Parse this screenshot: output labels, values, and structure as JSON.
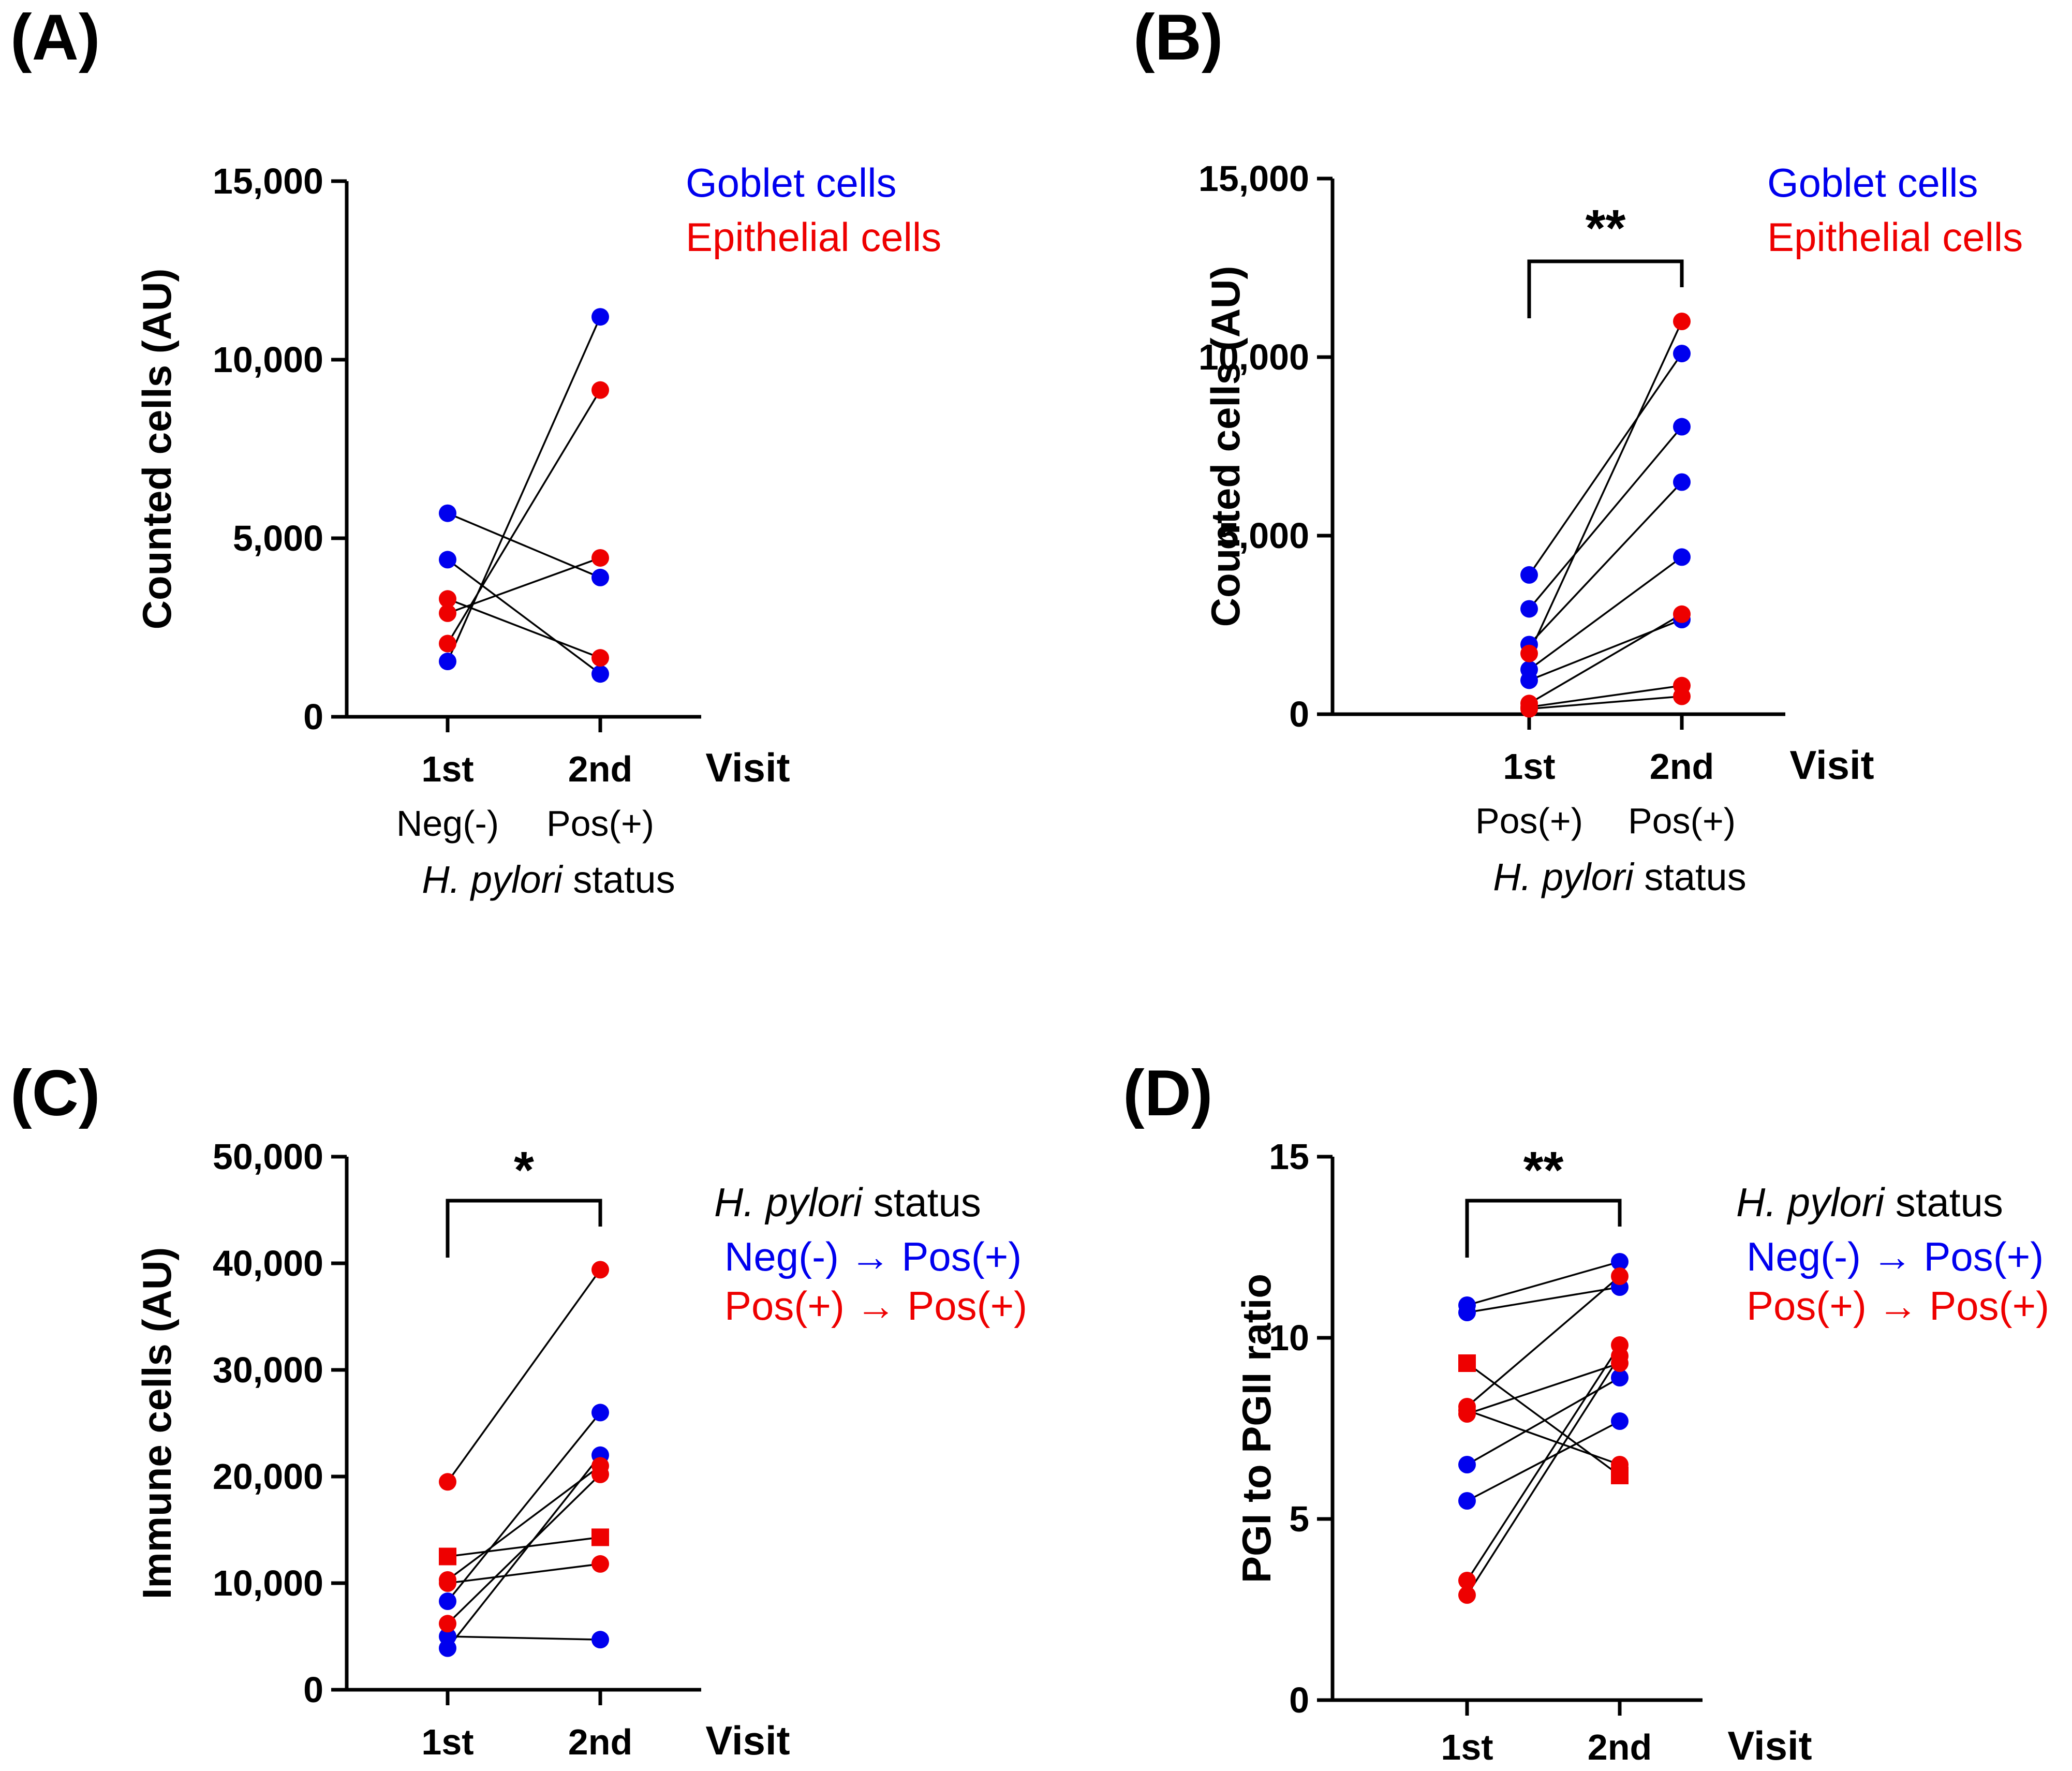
{
  "colors": {
    "goblet": "#0000ee",
    "epithelial": "#ee0000",
    "axis": "#000000"
  },
  "chart_data": [
    {
      "type": "scatter",
      "panel": "(A)",
      "ylabel": "Counted cells (AU)",
      "yticks": [
        "0",
        "5,000",
        "10,000",
        "15,000"
      ],
      "ylim": [
        0,
        15000
      ],
      "categories": [
        "1st",
        "2nd"
      ],
      "xlabel_end": "Visit",
      "sublabels": [
        "Neg(-)",
        "Pos(+)"
      ],
      "xtitle_italic": "H. pylori",
      "xtitle_rest": " status",
      "legend": [
        "Goblet cells",
        "Epithelial cells"
      ],
      "significance": "",
      "series": [
        {
          "color": "goblet",
          "marker": "circle",
          "values": [
            5700,
            3900
          ]
        },
        {
          "color": "goblet",
          "marker": "circle",
          "values": [
            4400,
            1200
          ]
        },
        {
          "color": "goblet",
          "marker": "circle",
          "values": [
            1550,
            11200
          ]
        },
        {
          "color": "epithelial",
          "marker": "circle",
          "values": [
            3300,
            1650
          ]
        },
        {
          "color": "epithelial",
          "marker": "circle",
          "values": [
            2900,
            4450
          ]
        },
        {
          "color": "epithelial",
          "marker": "circle",
          "values": [
            2050,
            9150
          ]
        }
      ]
    },
    {
      "type": "scatter",
      "panel": "(B)",
      "ylabel": "Counted cells (AU)",
      "yticks": [
        "0",
        "5,000",
        "10,000",
        "15,000"
      ],
      "ylim": [
        0,
        15000
      ],
      "categories": [
        "1st",
        "2nd"
      ],
      "xlabel_end": "Visit",
      "sublabels": [
        "Pos(+)",
        "Pos(+)"
      ],
      "xtitle_italic": "H. pylori",
      "xtitle_rest": " status",
      "legend": [
        "Goblet cells",
        "Epithelial cells"
      ],
      "significance": "**",
      "series": [
        {
          "color": "goblet",
          "marker": "circle",
          "values": [
            3900,
            10100
          ]
        },
        {
          "color": "goblet",
          "marker": "circle",
          "values": [
            2950,
            8050
          ]
        },
        {
          "color": "goblet",
          "marker": "circle",
          "values": [
            1950,
            6500
          ]
        },
        {
          "color": "goblet",
          "marker": "circle",
          "values": [
            1250,
            4400
          ]
        },
        {
          "color": "goblet",
          "marker": "circle",
          "values": [
            950,
            2650
          ]
        },
        {
          "color": "epithelial",
          "marker": "circle",
          "values": [
            1700,
            11000
          ]
        },
        {
          "color": "epithelial",
          "marker": "circle",
          "values": [
            300,
            2800
          ]
        },
        {
          "color": "epithelial",
          "marker": "circle",
          "values": [
            200,
            800
          ]
        },
        {
          "color": "epithelial",
          "marker": "circle",
          "values": [
            150,
            500
          ]
        }
      ]
    },
    {
      "type": "scatter",
      "panel": "(C)",
      "ylabel": "Immune cells (AU)",
      "yticks": [
        "0",
        "10,000",
        "20,000",
        "30,000",
        "40,000",
        "50,000"
      ],
      "ylim": [
        0,
        50000
      ],
      "categories": [
        "1st",
        "2nd"
      ],
      "xlabel_end": "Visit",
      "legend_title_italic": "H. pylori",
      "legend_title_rest": " status",
      "legend": [
        "Neg(-) →  Pos(+)",
        "Pos(+) →  Pos(+)"
      ],
      "significance": "*",
      "series": [
        {
          "color": "goblet",
          "marker": "circle",
          "values": [
            8300,
            26000
          ]
        },
        {
          "color": "goblet",
          "marker": "circle",
          "values": [
            5000,
            4700
          ]
        },
        {
          "color": "goblet",
          "marker": "circle",
          "values": [
            3900,
            22000
          ]
        },
        {
          "color": "epithelial",
          "marker": "circle",
          "values": [
            19500,
            39400
          ]
        },
        {
          "color": "epithelial",
          "marker": "square",
          "values": [
            12500,
            14300
          ]
        },
        {
          "color": "epithelial",
          "marker": "circle",
          "values": [
            10300,
            21000
          ]
        },
        {
          "color": "epithelial",
          "marker": "circle",
          "values": [
            10000,
            11800
          ]
        },
        {
          "color": "epithelial",
          "marker": "circle",
          "values": [
            6200,
            20200
          ]
        }
      ]
    },
    {
      "type": "scatter",
      "panel": "(D)",
      "ylabel": "PGI to PGII ratio",
      "yticks": [
        "0",
        "5",
        "10",
        "15"
      ],
      "ylim": [
        0,
        15
      ],
      "categories": [
        "1st",
        "2nd"
      ],
      "xlabel_end": "Visit",
      "legend_title_italic": "H. pylori",
      "legend_title_rest": " status",
      "legend": [
        "Neg(-) →  Pos(+)",
        "Pos(+) →  Pos(+)"
      ],
      "significance": "**",
      "series": [
        {
          "color": "goblet",
          "marker": "circle",
          "values": [
            10.9,
            12.1
          ]
        },
        {
          "color": "goblet",
          "marker": "circle",
          "values": [
            10.7,
            11.4
          ]
        },
        {
          "color": "goblet",
          "marker": "circle",
          "values": [
            6.5,
            8.9
          ]
        },
        {
          "color": "goblet",
          "marker": "circle",
          "values": [
            5.5,
            7.7
          ]
        },
        {
          "color": "epithelial",
          "marker": "square",
          "values": [
            9.3,
            6.2
          ]
        },
        {
          "color": "epithelial",
          "marker": "circle",
          "values": [
            8.1,
            11.7
          ]
        },
        {
          "color": "epithelial",
          "marker": "circle",
          "values": [
            7.9,
            9.3
          ]
        },
        {
          "color": "epithelial",
          "marker": "circle",
          "values": [
            8.0,
            6.5
          ]
        },
        {
          "color": "epithelial",
          "marker": "circle",
          "values": [
            3.3,
            9.8
          ]
        },
        {
          "color": "epithelial",
          "marker": "circle",
          "values": [
            2.9,
            9.5
          ]
        }
      ]
    }
  ]
}
